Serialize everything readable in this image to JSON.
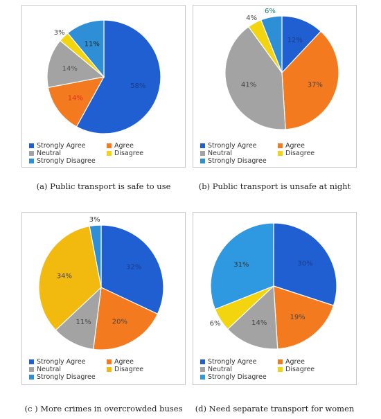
{
  "chart_data": [
    {
      "type": "pie",
      "title": "",
      "caption": "(a)  Public transport is safe to use",
      "categories": [
        "Strongly Agree",
        "Agree",
        "Neutral",
        "Disagree",
        "Strongly Disagree"
      ],
      "values": [
        58,
        14,
        14,
        3,
        11
      ],
      "labels": [
        "58%",
        "14%",
        "14%",
        "3%",
        "11%"
      ],
      "colors": [
        "#1f5fd1",
        "#f47a20",
        "#a3a3a3",
        "#f2d50f",
        "#2e8fd6"
      ]
    },
    {
      "type": "pie",
      "title": "",
      "caption": "(b) Public transport is unsafe at night",
      "categories": [
        "Strongly Agree",
        "Agree",
        "Neutral",
        "Disagree",
        "Strongly Disagree"
      ],
      "values": [
        12,
        37,
        41,
        4,
        6
      ],
      "labels": [
        "12%",
        "37%",
        "41%",
        "4%",
        "6%"
      ],
      "colors": [
        "#1f5fd1",
        "#f47a20",
        "#a3a3a3",
        "#f2d50f",
        "#2e8fd6"
      ]
    },
    {
      "type": "pie",
      "title": "",
      "caption": "(c ) More crimes in overcrowded buses",
      "categories": [
        "Strongly Agree",
        "Agree",
        "Neutral",
        "Disagree",
        "Strongly Disagree"
      ],
      "values": [
        32,
        20,
        11,
        34,
        3
      ],
      "labels": [
        "32%",
        "20%",
        "11%",
        "34%",
        "3%"
      ],
      "colors": [
        "#1f5fd1",
        "#f47a20",
        "#a3a3a3",
        "#f2b90f",
        "#2e8fd6"
      ]
    },
    {
      "type": "pie",
      "title": "",
      "caption": "(d) Need separate transport for women",
      "categories": [
        "Strongly Agree",
        "Agree",
        "Neutral",
        "Disagree",
        "Strongly Disagree"
      ],
      "values": [
        30,
        19,
        14,
        6,
        31
      ],
      "labels": [
        "30%",
        "19%",
        "14%",
        "6%",
        "31%"
      ],
      "colors": [
        "#1f5fd1",
        "#f47a20",
        "#a3a3a3",
        "#f2d50f",
        "#2e98e0"
      ]
    }
  ],
  "legend_colors": [
    "#1f5fd1",
    "#f47a20",
    "#a3a3a3",
    "#f2d50f",
    "#2e8fd6"
  ]
}
